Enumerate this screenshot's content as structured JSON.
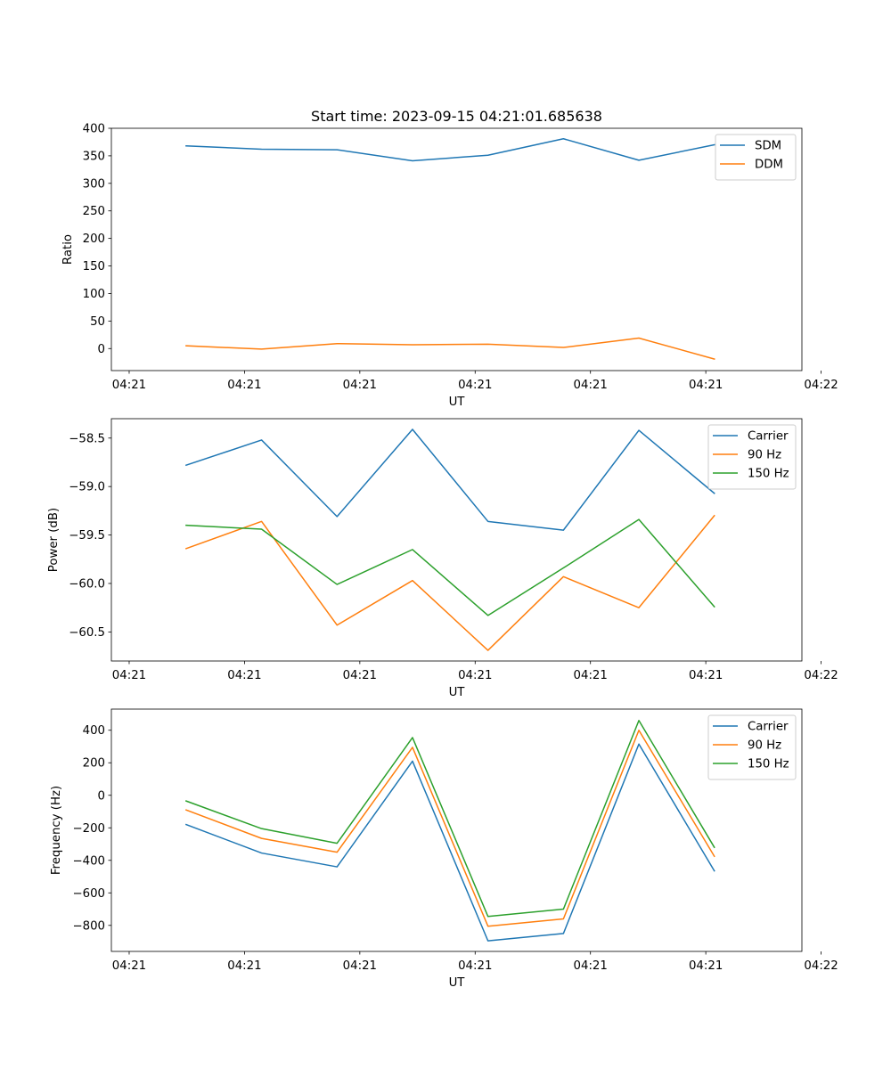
{
  "chart_data": [
    {
      "type": "line",
      "title": "Start time: 2023-09-15 04:21:01.685638",
      "xlabel": "UT",
      "ylabel": "Ratio",
      "ylim": [
        -40,
        400
      ],
      "yticks": [
        0,
        50,
        100,
        150,
        200,
        250,
        300,
        350,
        400
      ],
      "ytick_labels": [
        "0",
        "50",
        "100",
        "150",
        "200",
        "250",
        "300",
        "350",
        "400"
      ],
      "xlim": [
        -0.25,
        9.45
      ],
      "xticks": [
        0,
        1.62,
        3.24,
        4.86,
        6.48,
        8.1,
        9.72
      ],
      "xtick_labels": [
        "04:21",
        "04:21",
        "04:21",
        "04:21",
        "04:21",
        "04:21",
        "04:22"
      ],
      "x": [
        0.8,
        1.86,
        2.92,
        3.98,
        5.04,
        6.1,
        7.16,
        8.22
      ],
      "legend_position": "top-right",
      "series": [
        {
          "name": "SDM",
          "color": "#1f77b4",
          "values": [
            368,
            362,
            361,
            341,
            351,
            381,
            342,
            370
          ]
        },
        {
          "name": "DDM",
          "color": "#ff7f0e",
          "values": [
            5,
            -1,
            9,
            7,
            8,
            2,
            19,
            -19
          ]
        }
      ]
    },
    {
      "type": "line",
      "title": "",
      "xlabel": "UT",
      "ylabel": "Power (dB)",
      "ylim": [
        -60.8,
        -58.3
      ],
      "yticks": [
        -60.5,
        -60.0,
        -59.5,
        -59.0,
        -58.5
      ],
      "ytick_labels": [
        "−60.5",
        "−60.0",
        "−59.5",
        "−59.0",
        "−58.5"
      ],
      "xlim": [
        -0.25,
        9.45
      ],
      "xticks": [
        0,
        1.62,
        3.24,
        4.86,
        6.48,
        8.1,
        9.72
      ],
      "xtick_labels": [
        "04:21",
        "04:21",
        "04:21",
        "04:21",
        "04:21",
        "04:21",
        "04:22"
      ],
      "x": [
        0.8,
        1.86,
        2.92,
        3.98,
        5.04,
        6.1,
        7.16,
        8.22
      ],
      "legend_position": "top-right",
      "series": [
        {
          "name": "Carrier",
          "color": "#1f77b4",
          "values": [
            -58.78,
            -58.52,
            -59.31,
            -58.41,
            -59.36,
            -59.45,
            -58.42,
            -59.07
          ]
        },
        {
          "name": "90 Hz",
          "color": "#ff7f0e",
          "values": [
            -59.64,
            -59.36,
            -60.43,
            -59.97,
            -60.69,
            -59.93,
            -60.25,
            -59.3
          ]
        },
        {
          "name": "150 Hz",
          "color": "#2ca02c",
          "values": [
            -59.4,
            -59.44,
            -60.01,
            -59.65,
            -60.33,
            -59.84,
            -59.34,
            -60.24
          ]
        }
      ]
    },
    {
      "type": "line",
      "title": "",
      "xlabel": "UT",
      "ylabel": "Frequency (Hz)",
      "ylim": [
        -960,
        530
      ],
      "yticks": [
        -800,
        -600,
        -400,
        -200,
        0,
        200,
        400
      ],
      "ytick_labels": [
        "−800",
        "−600",
        "−400",
        "−200",
        "0",
        "200",
        "400"
      ],
      "xlim": [
        -0.25,
        9.45
      ],
      "xticks": [
        0,
        1.62,
        3.24,
        4.86,
        6.48,
        8.1,
        9.72
      ],
      "xtick_labels": [
        "04:21",
        "04:21",
        "04:21",
        "04:21",
        "04:21",
        "04:21",
        "04:22"
      ],
      "x": [
        0.8,
        1.86,
        2.92,
        3.98,
        5.04,
        6.1,
        7.16,
        8.22
      ],
      "legend_position": "top-right",
      "series": [
        {
          "name": "Carrier",
          "color": "#1f77b4",
          "values": [
            -180,
            -355,
            -440,
            210,
            -895,
            -850,
            315,
            -465
          ]
        },
        {
          "name": "90 Hz",
          "color": "#ff7f0e",
          "values": [
            -90,
            -265,
            -350,
            295,
            -805,
            -760,
            400,
            -375
          ]
        },
        {
          "name": "150 Hz",
          "color": "#2ca02c",
          "values": [
            -35,
            -205,
            -295,
            355,
            -745,
            -700,
            460,
            -320
          ]
        }
      ]
    }
  ]
}
